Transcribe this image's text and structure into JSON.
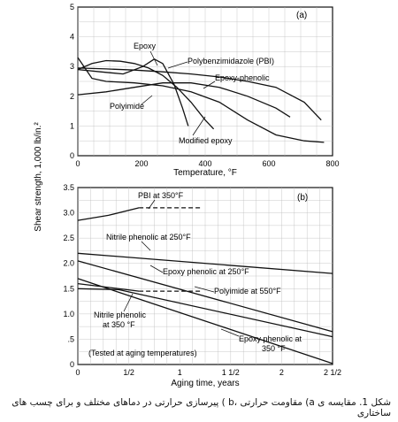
{
  "chart_data": [
    {
      "panel_label": "(a)",
      "type": "line",
      "xlabel": "Temperature, °F",
      "ylabel": "Shear strength, 1,000 lb/in.²",
      "xlim": [
        0,
        900
      ],
      "ylim": [
        0,
        5
      ],
      "xticks": [
        "0",
        "200",
        "400",
        "600",
        "800"
      ],
      "yticks": [
        "0",
        "1",
        "2",
        "3",
        "4",
        "5"
      ],
      "grid": true,
      "series": [
        {
          "name": "Epoxy",
          "x": [
            0,
            80,
            160,
            230,
            270,
            300,
            340,
            370,
            390
          ],
          "y": [
            2.9,
            2.82,
            2.75,
            3.0,
            3.25,
            3.1,
            2.4,
            1.6,
            1.0
          ]
        },
        {
          "name": "Polybenzimidazole (PBI)",
          "x": [
            0,
            100,
            200,
            300,
            400,
            500,
            600,
            700,
            800,
            860
          ],
          "y": [
            2.95,
            2.92,
            2.88,
            2.82,
            2.75,
            2.65,
            2.5,
            2.3,
            1.8,
            1.2
          ]
        },
        {
          "name": "Epoxy-phenolic",
          "x": [
            0,
            100,
            200,
            300,
            400,
            500,
            600,
            700,
            750
          ],
          "y": [
            2.05,
            2.15,
            2.3,
            2.45,
            2.45,
            2.3,
            2.0,
            1.6,
            1.3
          ]
        },
        {
          "name": "Polyimide",
          "x": [
            0,
            50,
            100,
            200,
            300,
            400,
            500,
            600,
            700,
            800,
            870
          ],
          "y": [
            3.3,
            2.6,
            2.5,
            2.45,
            2.35,
            2.15,
            1.8,
            1.2,
            0.7,
            0.5,
            0.45
          ]
        },
        {
          "name": "Modified epoxy",
          "x": [
            0,
            50,
            100,
            150,
            200,
            250,
            300,
            350,
            400,
            450,
            480
          ],
          "y": [
            2.9,
            3.1,
            3.2,
            3.18,
            3.1,
            2.95,
            2.7,
            2.3,
            1.8,
            1.2,
            0.9
          ]
        }
      ],
      "annotations": [
        "Epoxy",
        "Polybenzimidazole (PBI)",
        "Epoxy-phenolic",
        "Polyimide",
        "Modified epoxy"
      ]
    },
    {
      "panel_label": "(b)",
      "type": "line",
      "xlabel": "Aging time, years",
      "ylabel": "Shear strength, 1,000 lb/in.²",
      "xlim": [
        0,
        2.5
      ],
      "ylim": [
        0,
        3.5
      ],
      "xticks": [
        "0",
        "1/2",
        "1",
        "1 1/2",
        "2",
        "2 1/2"
      ],
      "yticks": [
        "0",
        ".5",
        "1.0",
        "1.5",
        "2.0",
        "2.5",
        "3.0",
        "3.5"
      ],
      "grid": true,
      "series": [
        {
          "name": "PBI at 350°F",
          "x": [
            0,
            0.3,
            0.6
          ],
          "y": [
            2.85,
            2.95,
            3.1
          ],
          "extrapolated": {
            "x": [
              0.6,
              1.2
            ],
            "y": [
              3.1,
              3.1
            ]
          }
        },
        {
          "name": "Nitrile phenolic at 250°F",
          "x": [
            0,
            2.5
          ],
          "y": [
            2.2,
            1.8
          ]
        },
        {
          "name": "Epoxy phenolic at 250°F",
          "x": [
            0,
            2.5
          ],
          "y": [
            2.05,
            0.65
          ]
        },
        {
          "name": "Polyimide at 550°F",
          "x": [
            0,
            0.6
          ],
          "y": [
            1.6,
            1.45
          ],
          "extrapolated": {
            "x": [
              0.6,
              1.2
            ],
            "y": [
              1.45,
              1.45
            ]
          }
        },
        {
          "name": "Nitrile phenolic at 350°F",
          "x": [
            0,
            0.4,
            2.5
          ],
          "y": [
            1.5,
            1.48,
            0.55
          ]
        },
        {
          "name": "Epoxy phenolic at 350°F",
          "x": [
            0,
            2.5
          ],
          "y": [
            1.7,
            0.02
          ]
        }
      ],
      "annotations": [
        "PBI at 350°F",
        "Nitrile phenolic at 250°F",
        "Epoxy phenolic at 250°F",
        "Polyimide at 550°F",
        "Nitrile phenolic at 350°F",
        "Epoxy phenolic at 350°F",
        "(Tested at aging temperatures)"
      ]
    }
  ],
  "caption": "شکل 1. مقایسه ی a) مقاومت حرارتی ،b ) پیرسازی حرارتی در دماهای مختلف و برای چسب های ساختاری"
}
